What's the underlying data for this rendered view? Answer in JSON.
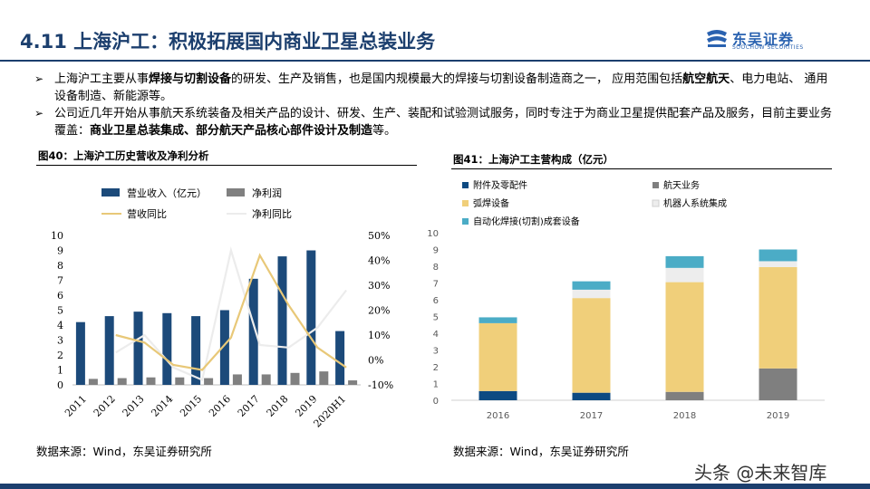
{
  "header": {
    "title": "4.11 上海沪工：积极拓展国内商业卫星总装业务",
    "logo_cn": "东吴证券",
    "logo_en": "SOOCHOW SECURITIES"
  },
  "bullets": [
    {
      "p1": "上海沪工主要从事",
      "b1": "焊接与切割设备",
      "p2": "的研发、生产及销售，也是国内规模最大的焊接与切割设备制造商之一， 应用范围包括",
      "b2": "航空航天",
      "p3": "、电力电站、 通用设备制造、新能源等。"
    },
    {
      "p1": "公司近几年开始从事航天系统装备及相关产品的设计、研发、生产、装配和试验测试服务，同时专注于为商业卫星提供配套产品及服务，目前主要业务覆盖：",
      "b1": "商业卫星总装集成、部分航天产品核心部件设计及制造",
      "p2": "等。"
    }
  ],
  "fig40_title": "图40：上海沪工历史营收及净利分析",
  "fig41_title": "图41：上海沪工主营构成（亿元）",
  "source_left": "数据来源：Wind，东吴证券研究所",
  "source_right": "数据来源：Wind，东吴证券研究所",
  "watermark": "头条 @未来智库",
  "colors": {
    "navy": "#1c3f6e",
    "bar_revenue": "#1c4a7a",
    "bar_profit": "#808080",
    "line_rev_growth": "#e8c878",
    "line_profit_growth": "#ececec",
    "seg_parts": "#0d4a82",
    "seg_aero": "#7f7f7f",
    "seg_arc": "#f0cf7a",
    "seg_robot": "#ededed",
    "seg_auto": "#4bacc6"
  },
  "chart_data": [
    {
      "type": "bar",
      "categories": [
        "2011",
        "2012",
        "2013",
        "2014",
        "2015",
        "2016",
        "2017",
        "2018",
        "2019",
        "2020H1"
      ],
      "series": [
        {
          "name": "营业收入（亿元）",
          "type": "bar",
          "axis": "left",
          "values": [
            4.2,
            4.6,
            4.9,
            4.8,
            4.6,
            5.0,
            7.1,
            8.6,
            9.0,
            3.6
          ]
        },
        {
          "name": "净利润",
          "type": "bar",
          "axis": "left",
          "values": [
            0.4,
            0.45,
            0.5,
            0.5,
            0.45,
            0.7,
            0.7,
            0.8,
            0.9,
            0.3
          ]
        },
        {
          "name": "营收同比",
          "type": "line",
          "axis": "right",
          "values": [
            null,
            10,
            7,
            -2,
            -4,
            9,
            42,
            22,
            5,
            -3
          ]
        },
        {
          "name": "净利同比",
          "type": "line",
          "axis": "right",
          "values": [
            null,
            3,
            10,
            -3,
            -8,
            44,
            6,
            5,
            13,
            28
          ]
        }
      ],
      "y_left": {
        "ylim": [
          0,
          10
        ],
        "ticks": [
          "0",
          "1",
          "2",
          "3",
          "4",
          "5",
          "6",
          "7",
          "8",
          "9",
          "10"
        ]
      },
      "y_right": {
        "ylim": [
          -10,
          50
        ],
        "ticks": [
          "-10%",
          "0%",
          "10%",
          "20%",
          "30%",
          "40%",
          "50%"
        ]
      },
      "legend": "top"
    },
    {
      "type": "bar",
      "stacked": true,
      "categories": [
        "2016",
        "2017",
        "2018",
        "2019"
      ],
      "series": [
        {
          "name": "附件及零配件",
          "values": [
            0.55,
            0.45,
            0.0,
            0.0
          ]
        },
        {
          "name": "航天业务",
          "values": [
            0.0,
            0.0,
            0.5,
            1.9
          ]
        },
        {
          "name": "弧焊设备",
          "values": [
            4.05,
            5.65,
            6.55,
            6.05
          ]
        },
        {
          "name": "机器人系统集成",
          "values": [
            0.0,
            0.5,
            0.85,
            0.35
          ]
        },
        {
          "name": "自动化焊接(切割)成套设备",
          "values": [
            0.35,
            0.5,
            0.7,
            0.7
          ]
        }
      ],
      "ylim": [
        0,
        10
      ],
      "yticks": [
        "0",
        "1",
        "2",
        "3",
        "4",
        "5",
        "6",
        "7",
        "8",
        "9",
        "10"
      ],
      "legend": "top"
    }
  ]
}
